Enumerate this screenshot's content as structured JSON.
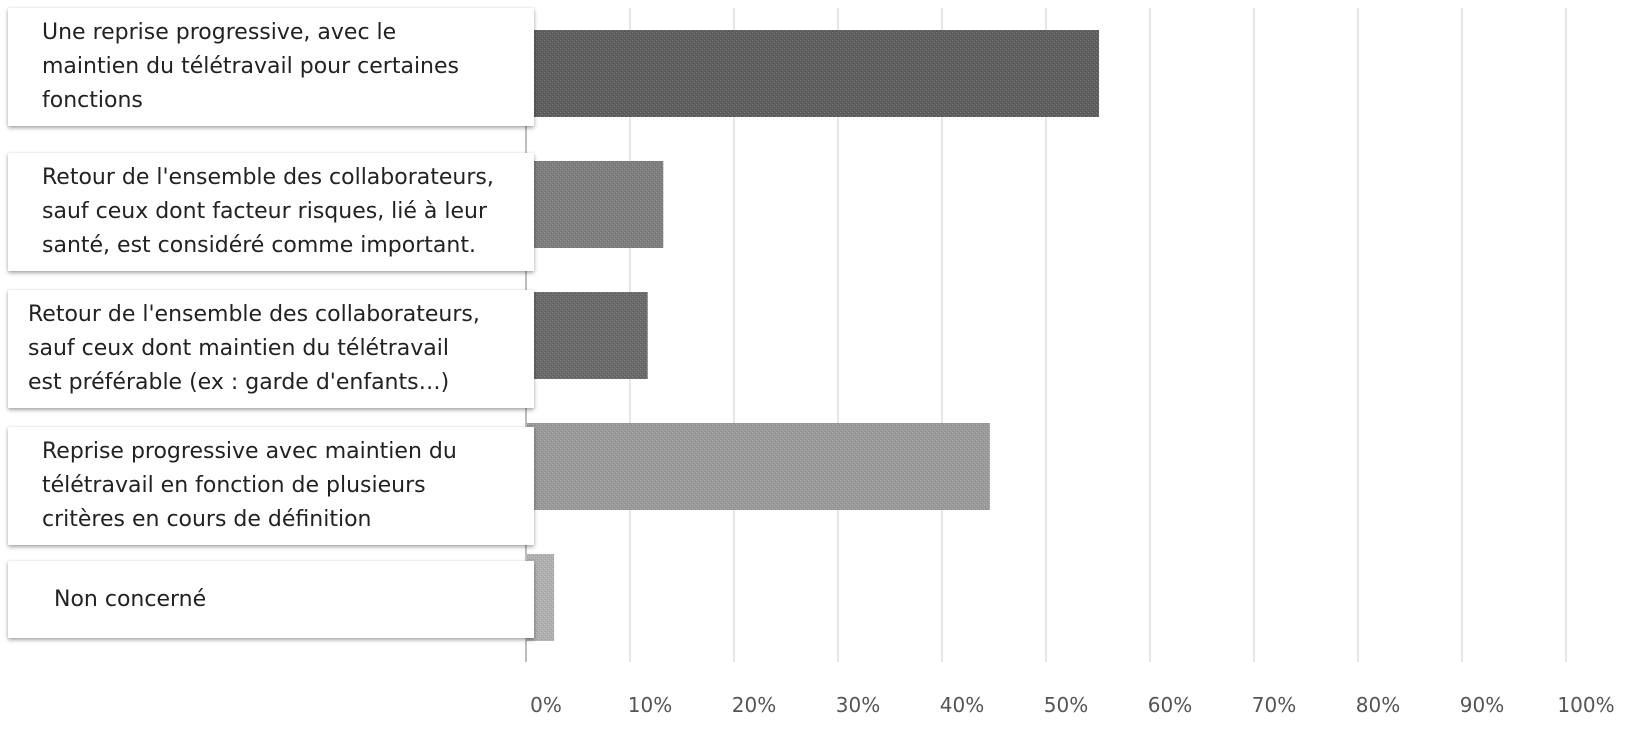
{
  "chart_data": {
    "type": "bar",
    "orientation": "horizontal",
    "categories": [
      "Une reprise progressive, avec le\nmaintien du télétravail pour certaines\nfonctions",
      "Retour de l'ensemble des collaborateurs,\nsauf ceux dont facteur risques, lié à leur\nsanté, est considéré comme important.",
      "Retour de l'ensemble des collaborateurs,\nsauf  ceux dont maintien du télétravail\nest préférable (ex : garde d'enfants…)",
      "Reprise progressive avec maintien du\ntélétravail en fonction de plusieurs\ncritères en cours de définition",
      "Non concerné"
    ],
    "values": [
      55.1,
      13.2,
      11.7,
      44.6,
      2.7
    ],
    "value_unit": "%",
    "xlim": [
      0,
      100
    ],
    "x_ticks": [
      0,
      10,
      20,
      30,
      40,
      50,
      60,
      70,
      80,
      90,
      100
    ],
    "x_tick_labels": [
      "0%",
      "10%",
      "20%",
      "30%",
      "40%",
      "50%",
      "60%",
      "70%",
      "80%",
      "90%",
      "100%"
    ],
    "grid": true,
    "legend": "none",
    "title": "",
    "xlabel": "",
    "ylabel": "",
    "bar_colors": [
      "#5e5e5e",
      "#7e7e7e",
      "#6a6a6a",
      "#9a9a9a",
      "#b0b0b0"
    ],
    "grid_color": "#e6e6e6",
    "axis_color": "#bdbdbd"
  }
}
